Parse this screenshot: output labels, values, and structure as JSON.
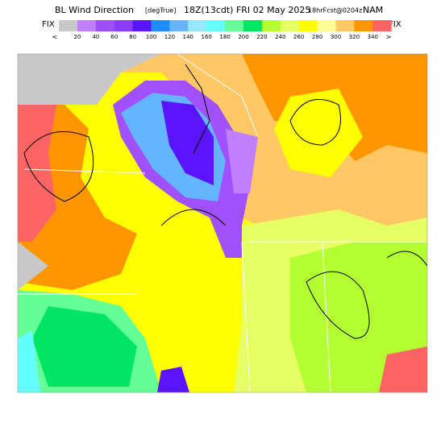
{
  "header": {
    "title": "BL Wind Direction",
    "units": "[degTrue]",
    "time": "18Z(13cdt) FRI 02 May 2025",
    "forecast": "18hrFcst@0204z",
    "model": "NAM"
  },
  "legend": {
    "left_label": "FIX",
    "right_label": "FIX",
    "low_label": "<",
    "high_label": ">",
    "labels": [
      20,
      40,
      60,
      80,
      100,
      120,
      140,
      160,
      180,
      200,
      220,
      240,
      260,
      280,
      300,
      320,
      340
    ],
    "colors": [
      "#c8c8c8",
      "#c080ff",
      "#a050ff",
      "#8c3cff",
      "#5a14ff",
      "#1e8cff",
      "#64b4ff",
      "#96e6ff",
      "#64ffff",
      "#64ff96",
      "#00e664",
      "#b4ff32",
      "#e6ff64",
      "#ffff00",
      "#ffff96",
      "#ffc864",
      "#ff9600",
      "#ff6464"
    ]
  }
}
